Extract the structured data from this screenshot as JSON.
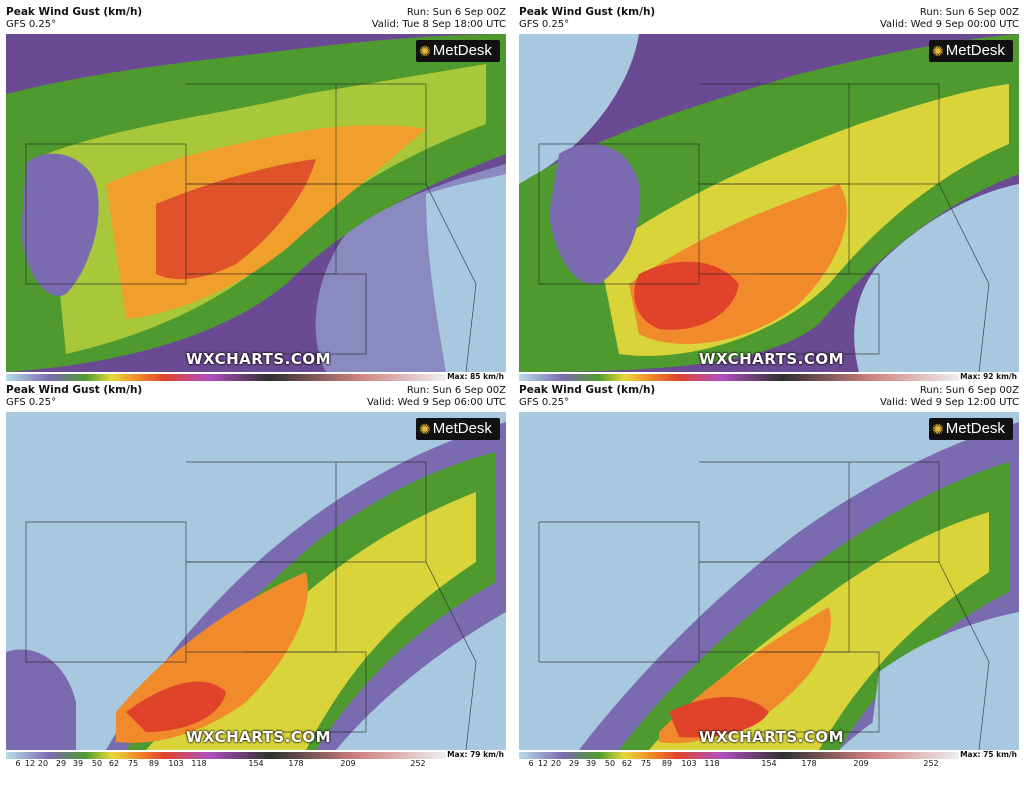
{
  "panels": [
    {
      "title": "Peak Wind Gust (km/h)",
      "model": "GFS 0.25°",
      "run": "Run: Sun 6 Sep 00Z",
      "valid": "Valid: Tue 8 Sep 18:00 UTC",
      "max": "Max: 85 km/h",
      "brand": "MetDesk",
      "watermark": "WXCHARTS.COM"
    },
    {
      "title": "Peak Wind Gust (km/h)",
      "model": "GFS 0.25°",
      "run": "Run: Sun 6 Sep 00Z",
      "valid": "Valid: Wed 9 Sep 00:00 UTC",
      "max": "Max: 92 km/h",
      "brand": "MetDesk",
      "watermark": "WXCHARTS.COM"
    },
    {
      "title": "Peak Wind Gust (km/h)",
      "model": "GFS 0.25°",
      "run": "Run: Sun 6 Sep 00Z",
      "valid": "Valid: Wed 9 Sep 06:00 UTC",
      "max": "Max: 79 km/h",
      "brand": "MetDesk",
      "watermark": "WXCHARTS.COM"
    },
    {
      "title": "Peak Wind Gust (km/h)",
      "model": "GFS 0.25°",
      "run": "Run: Sun 6 Sep 00Z",
      "valid": "Valid: Wed 9 Sep 12:00 UTC",
      "max": "Max: 75 km/h",
      "brand": "MetDesk",
      "watermark": "WXCHARTS.COM"
    }
  ],
  "scale_ticks": [
    "6",
    "12",
    "20",
    "29",
    "39",
    "50",
    "62",
    "75",
    "89",
    "103",
    "118",
    "154",
    "178",
    "209",
    "252"
  ],
  "colors": {
    "calm": "#b8dbea",
    "low": "#7a6bb0",
    "purple": "#6a3f8f",
    "green": "#5aa832",
    "yellow": "#e8d83a",
    "orange": "#f08a2a",
    "red": "#e0432a"
  }
}
